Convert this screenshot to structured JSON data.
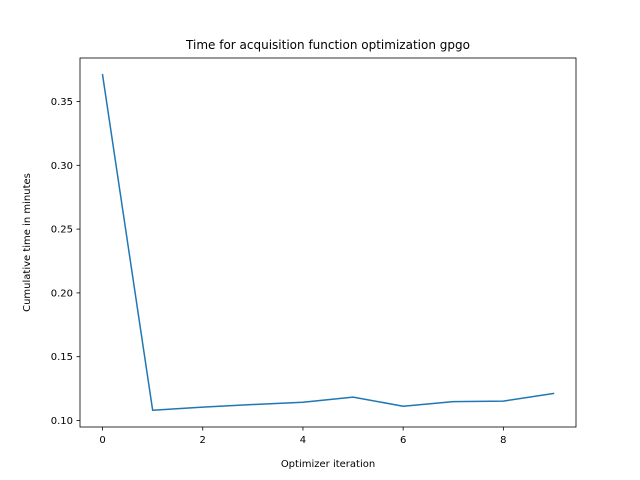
{
  "chart_data": {
    "type": "line",
    "title": "Time for acquisition function optimization gpgo",
    "xlabel": "Optimizer iteration",
    "ylabel": "Cumulative time in minutes",
    "x": [
      0,
      1,
      2,
      3,
      4,
      5,
      6,
      7,
      8,
      9
    ],
    "series": [
      {
        "values": [
          0.371,
          0.108,
          0.1105,
          0.1125,
          0.1143,
          0.1183,
          0.1112,
          0.1148,
          0.1152,
          0.1212
        ],
        "color": "#1f77b4"
      }
    ],
    "xlim": [
      -0.45,
      9.45
    ],
    "ylim": [
      0.0949,
      0.3841
    ],
    "xticks": [
      0,
      2,
      4,
      6,
      8
    ],
    "xtick_labels": [
      "0",
      "2",
      "4",
      "6",
      "8"
    ],
    "yticks": [
      0.1,
      0.15,
      0.2,
      0.25,
      0.3,
      0.35
    ],
    "ytick_labels": [
      "0.10",
      "0.15",
      "0.20",
      "0.25",
      "0.30",
      "0.35"
    ],
    "grid": false,
    "legend": false
  }
}
